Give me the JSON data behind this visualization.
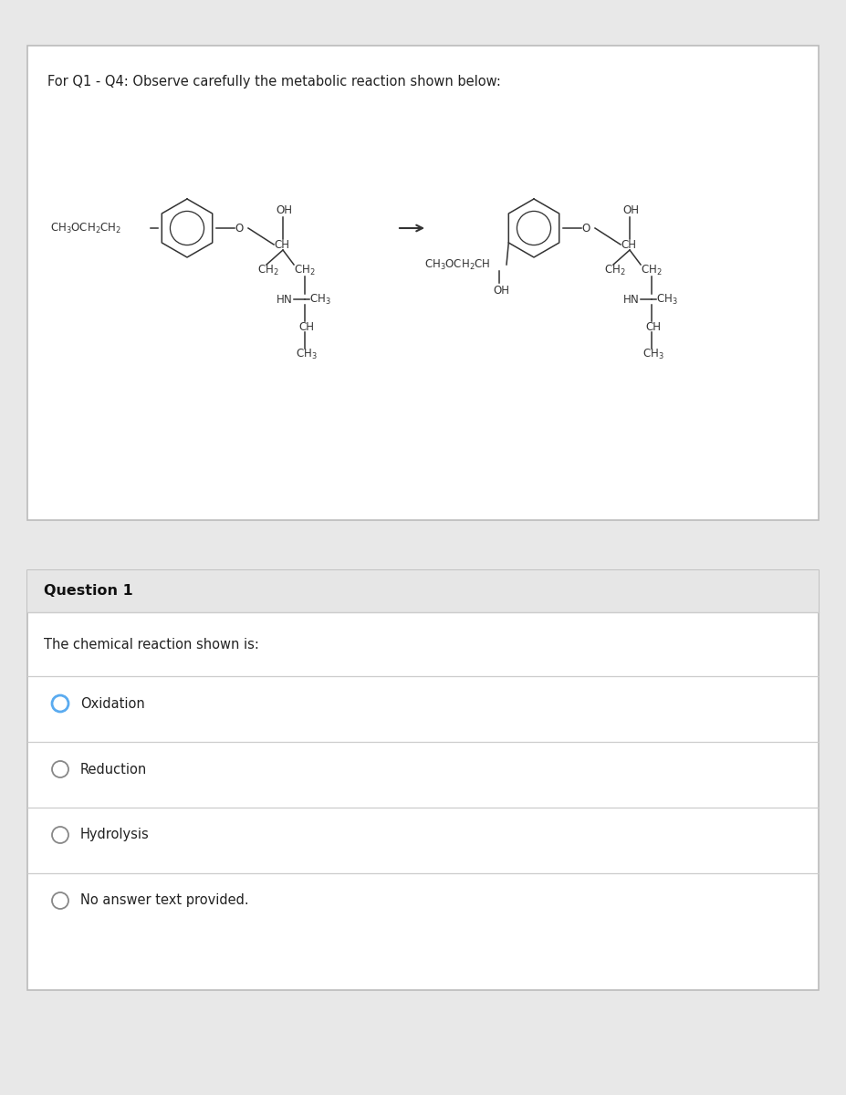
{
  "bg_color": "#ffffff",
  "outer_bg": "#e8e8e8",
  "box1_color": "#ffffff",
  "box1_border": "#bbbbbb",
  "box2_color": "#ffffff",
  "box2_border": "#bbbbbb",
  "header_text": "For Q1 - Q4: Observe carefully the metabolic reaction shown below:",
  "header_fontsize": 10.5,
  "question_label": "Question 1",
  "question_label_fontsize": 11.5,
  "question_text": "The chemical reaction shown is:",
  "question_text_fontsize": 10.5,
  "options": [
    "Oxidation",
    "Reduction",
    "Hydrolysis",
    "No answer text provided."
  ],
  "option_fontsize": 10.5,
  "selected_circle_color": "#5aabf0",
  "unselected_circle_color": "#888888",
  "line_color": "#cccccc",
  "text_color": "#222222",
  "chem_color": "#333333",
  "arrow_color": "#333333"
}
